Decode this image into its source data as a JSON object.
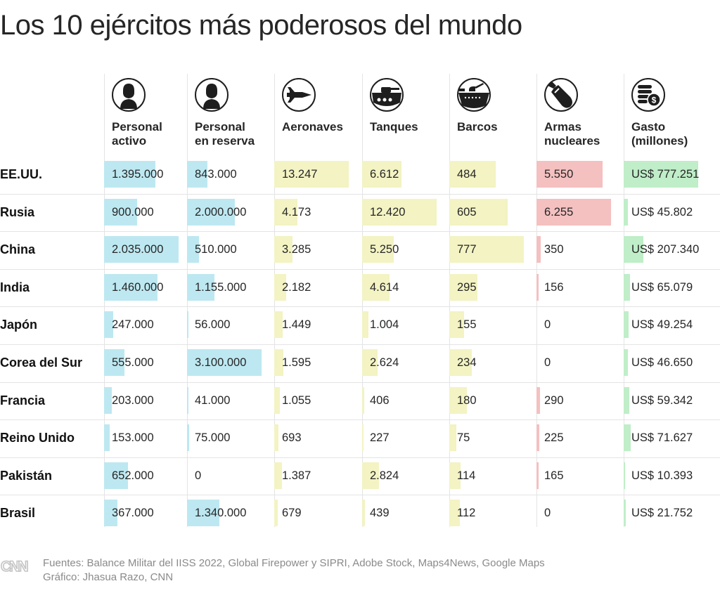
{
  "title": "Los 10 ejércitos más poderosos del mundo",
  "chart_data": {
    "type": "table",
    "title": "Los 10 ejércitos más poderosos del mundo",
    "columns": [
      {
        "key": "activo",
        "label": "Personal\nactivo",
        "icon": "soldier-icon",
        "color": "#bde8f1",
        "max": 2035000
      },
      {
        "key": "reserva",
        "label": "Personal\nen reserva",
        "icon": "soldier-icon",
        "color": "#bde8f1",
        "max": 3100000
      },
      {
        "key": "aeronaves",
        "label": "Aeronaves",
        "icon": "fighter-jet-icon",
        "color": "#f3f3c4",
        "max": 13247
      },
      {
        "key": "tanques",
        "label": "Tanques",
        "icon": "tank-icon",
        "color": "#f3f3c4",
        "max": 12420
      },
      {
        "key": "barcos",
        "label": "Barcos",
        "icon": "warship-icon",
        "color": "#f3f3c4",
        "max": 777
      },
      {
        "key": "nucleares",
        "label": "Armas\nnucleares",
        "icon": "bomb-icon",
        "color": "#f4c0c0",
        "max": 6255
      },
      {
        "key": "gasto",
        "label": "Gasto\n(millones)",
        "icon": "coins-dollar-icon",
        "color": "#bfeec8",
        "max": 777251
      }
    ],
    "rows": [
      {
        "country": "EE.UU.",
        "values": [
          1395000,
          843000,
          13247,
          6612,
          484,
          5550,
          777251
        ],
        "labels": [
          "1.395.000",
          "843.000",
          "13.247",
          "6.612",
          "484",
          "5.550",
          "US$ 777.251"
        ]
      },
      {
        "country": "Rusia",
        "values": [
          900000,
          2000000,
          4173,
          12420,
          605,
          6255,
          45802
        ],
        "labels": [
          "900.000",
          "2.000.000",
          "4.173",
          "12.420",
          "605",
          "6.255",
          "US$ 45.802"
        ]
      },
      {
        "country": "China",
        "values": [
          2035000,
          510000,
          3285,
          5250,
          777,
          350,
          207340
        ],
        "labels": [
          "2.035.000",
          "510.000",
          "3.285",
          "5.250",
          "777",
          "350",
          "US$ 207.340"
        ]
      },
      {
        "country": "India",
        "values": [
          1460000,
          1155000,
          2182,
          4614,
          295,
          156,
          65079
        ],
        "labels": [
          "1.460.000",
          "1.155.000",
          "2.182",
          "4.614",
          "295",
          "156",
          "US$ 65.079"
        ]
      },
      {
        "country": "Japón",
        "values": [
          247000,
          56000,
          1449,
          1004,
          155,
          0,
          49254
        ],
        "labels": [
          "247.000",
          "56.000",
          "1.449",
          "1.004",
          "155",
          "0",
          "US$ 49.254"
        ]
      },
      {
        "country": "Corea del Sur",
        "values": [
          555000,
          3100000,
          1595,
          2624,
          234,
          0,
          46650
        ],
        "labels": [
          "555.000",
          "3.100.000",
          "1.595",
          "2.624",
          "234",
          "0",
          "US$ 46.650"
        ]
      },
      {
        "country": "Francia",
        "values": [
          203000,
          41000,
          1055,
          406,
          180,
          290,
          59342
        ],
        "labels": [
          "203.000",
          "41.000",
          "1.055",
          "406",
          "180",
          "290",
          "US$ 59.342"
        ]
      },
      {
        "country": "Reino Unido",
        "values": [
          153000,
          75000,
          693,
          227,
          75,
          225,
          71627
        ],
        "labels": [
          "153.000",
          "75.000",
          "693",
          "227",
          "75",
          "225",
          "US$ 71.627"
        ]
      },
      {
        "country": "Pakistán",
        "values": [
          652000,
          0,
          1387,
          2824,
          114,
          165,
          10393
        ],
        "labels": [
          "652.000",
          "0",
          "1.387",
          "2.824",
          "114",
          "165",
          "US$ 10.393"
        ]
      },
      {
        "country": "Brasil",
        "values": [
          367000,
          1340000,
          679,
          439,
          112,
          0,
          21752
        ],
        "labels": [
          "367.000",
          "1.340.000",
          "679",
          "439",
          "112",
          "0",
          "US$ 21.752"
        ]
      }
    ]
  },
  "footer": {
    "logo": "CNN",
    "sources": "Fuentes: Balance Militar del IISS 2022, Global Firepower y SIPRI, Adobe Stock, Maps4News, Google Maps",
    "credit": "Gráfico: Jhasua Razo, CNN"
  }
}
